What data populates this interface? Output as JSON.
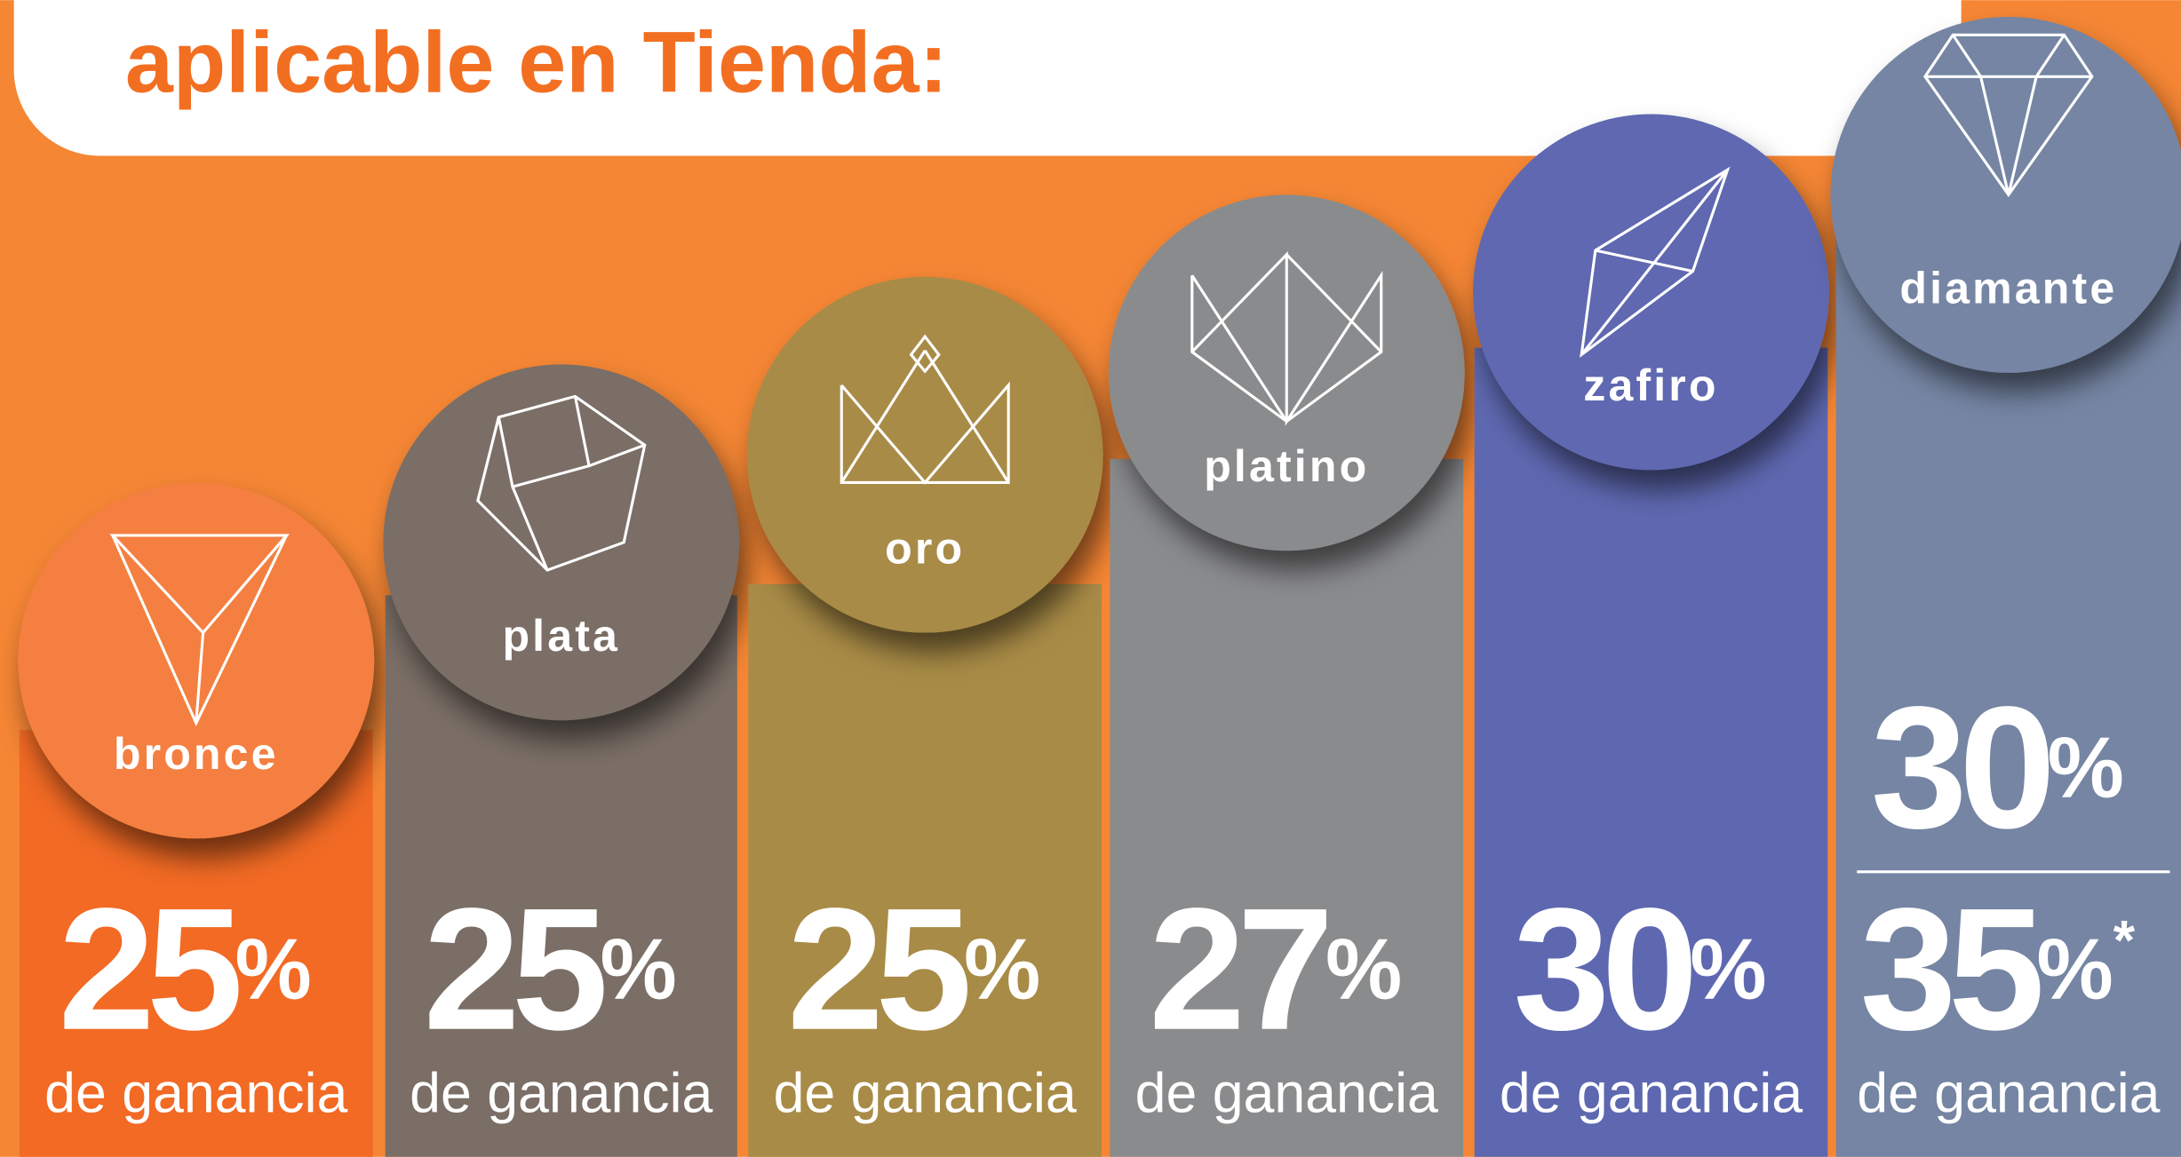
{
  "header": {
    "title": "aplicable en Tienda:"
  },
  "tiers": [
    {
      "name": "bronce",
      "percent": 25,
      "unit": "%",
      "caption": "de ganancia"
    },
    {
      "name": "plata",
      "percent": 25,
      "unit": "%",
      "caption": "de ganancia"
    },
    {
      "name": "oro",
      "percent": 25,
      "unit": "%",
      "caption": "de ganancia"
    },
    {
      "name": "platino",
      "percent": 27,
      "unit": "%",
      "caption": "de ganancia"
    },
    {
      "name": "zafiro",
      "percent": 30,
      "unit": "%",
      "caption": "de ganancia"
    },
    {
      "name": "diamante",
      "base_percent": 30,
      "base_unit": "%",
      "percent": 35,
      "unit": "%",
      "note": "*",
      "caption": "de ganancia"
    }
  ]
}
